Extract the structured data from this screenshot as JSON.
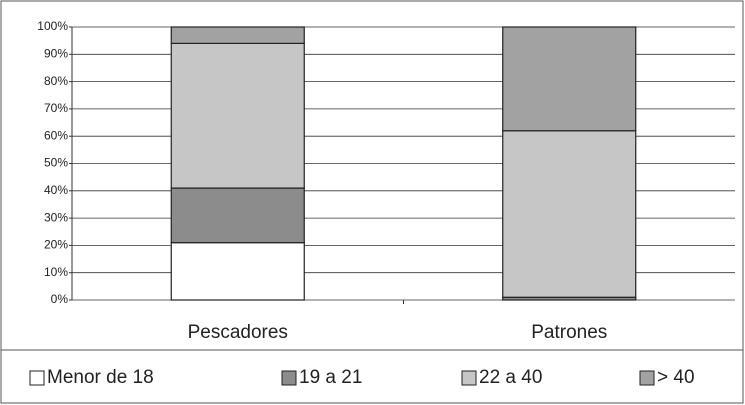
{
  "chart_data": {
    "type": "stacked_bar",
    "categories": [
      "Pescadores",
      "Patrones"
    ],
    "series": [
      {
        "name": "Menor de 18",
        "color": "#ffffff",
        "values": [
          21,
          0
        ]
      },
      {
        "name": "19 a 21",
        "color": "#8c8c8c",
        "values": [
          20,
          1
        ]
      },
      {
        "name": "22 a 40",
        "color": "#c6c6c6",
        "values": [
          53,
          61
        ]
      },
      {
        "name": "> 40",
        "color": "#a2a2a2",
        "values": [
          6,
          38
        ]
      }
    ],
    "ylim": [
      0,
      100
    ],
    "yticks": [
      {
        "value": 0,
        "label": "0%"
      },
      {
        "value": 10,
        "label": "10%"
      },
      {
        "value": 20,
        "label": "20%"
      },
      {
        "value": 30,
        "label": "30%"
      },
      {
        "value": 40,
        "label": "40%"
      },
      {
        "value": 50,
        "label": "50%"
      },
      {
        "value": 60,
        "label": "60%"
      },
      {
        "value": 70,
        "label": "70%"
      },
      {
        "value": 80,
        "label": "80%"
      },
      {
        "value": 90,
        "label": "90%"
      },
      {
        "value": 100,
        "label": "100%"
      }
    ],
    "grid": true,
    "legend": "bottom"
  }
}
